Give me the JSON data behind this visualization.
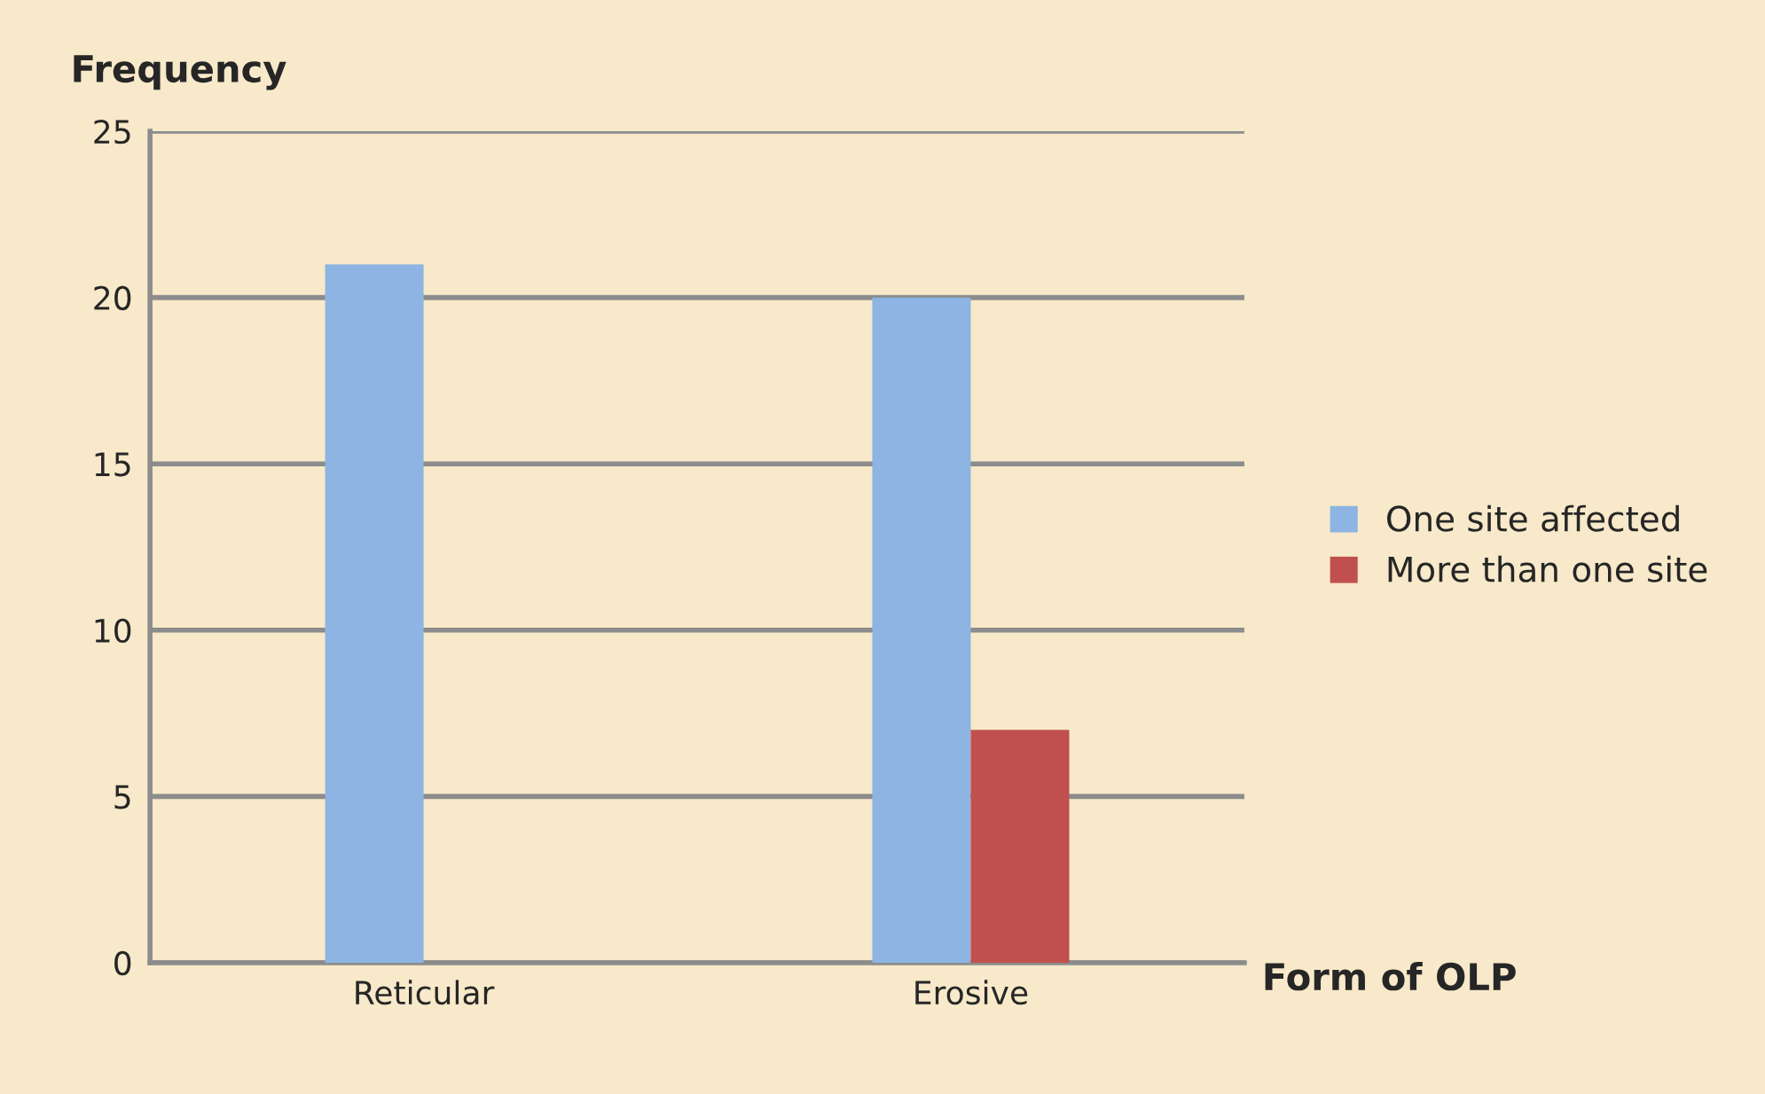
{
  "chart_data": {
    "type": "bar",
    "ylabel": "Frequency",
    "xlabel": "Form of OLP",
    "categories": [
      "Reticular",
      "Erosive"
    ],
    "series": [
      {
        "name": "One site affected",
        "color": "#8db4e2",
        "values": [
          21,
          20
        ]
      },
      {
        "name": "More than one site",
        "color": "#c0504d",
        "values": [
          0,
          7
        ]
      }
    ],
    "ylim": [
      0,
      25
    ],
    "yticks": [
      0,
      5,
      10,
      15,
      20,
      25
    ],
    "grid": "y",
    "legend": "right"
  }
}
